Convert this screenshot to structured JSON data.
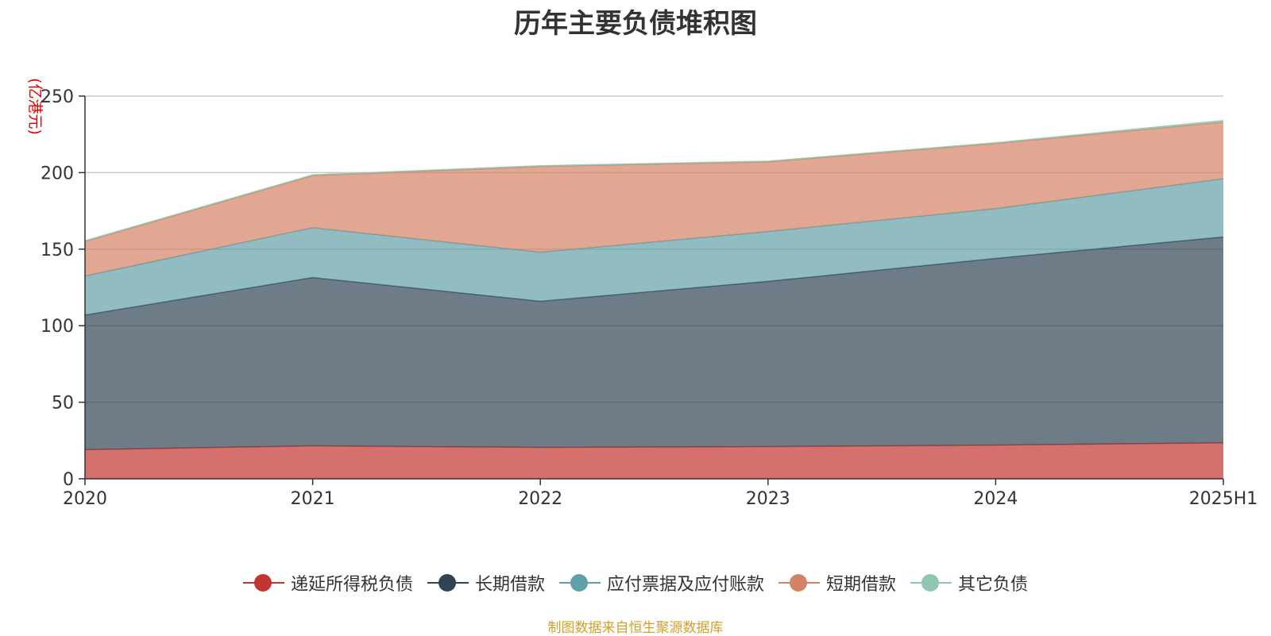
{
  "chart_data": {
    "type": "area",
    "stacked": true,
    "title": "历年主要负债堆积图",
    "ylabel": "(亿港元)",
    "xlabel": "",
    "categories": [
      "2020",
      "2021",
      "2022",
      "2023",
      "2024",
      "2025H1"
    ],
    "ylim": [
      0,
      250
    ],
    "yticks": [
      0,
      50,
      100,
      150,
      200,
      250
    ],
    "grid": true,
    "legend_position": "bottom",
    "series": [
      {
        "name": "递延所得税负债",
        "color": "#c23531",
        "values": [
          19,
          21.5,
          20.5,
          21,
          22,
          23.5
        ]
      },
      {
        "name": "长期借款",
        "color": "#2f4554",
        "values": [
          88,
          110,
          95.5,
          108,
          122,
          134.5
        ]
      },
      {
        "name": "应付票据及应付账款",
        "color": "#61a0a8",
        "values": [
          25.5,
          32.5,
          32,
          32.5,
          32.5,
          38
        ]
      },
      {
        "name": "短期借款",
        "color": "#d48265",
        "values": [
          22.5,
          34,
          56,
          45.5,
          42.5,
          37
        ]
      },
      {
        "name": "其它负债",
        "color": "#91c7ae",
        "values": [
          0.5,
          0.5,
          0.5,
          0.5,
          0.5,
          1
        ]
      }
    ]
  },
  "source_note": "制图数据来自恒生聚源数据库"
}
